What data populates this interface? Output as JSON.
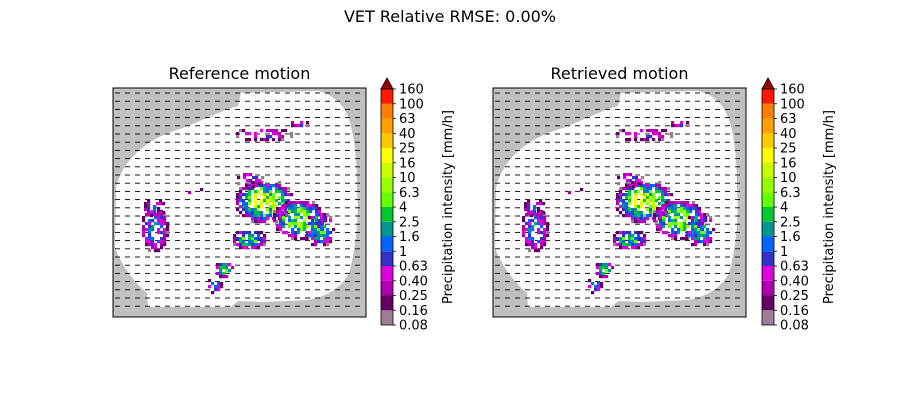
{
  "figure": {
    "suptitle": "VET Relative RMSE: 0.00%"
  },
  "colorbar": {
    "label": "Precipitation intensity [mm/h]",
    "tick_labels": [
      "0.08",
      "0.16",
      "0.25",
      "0.40",
      "0.63",
      "1",
      "1.6",
      "2.5",
      "4",
      "6.3",
      "10",
      "16",
      "25",
      "40",
      "63",
      "100",
      "160"
    ],
    "colors": [
      "#9c7e94",
      "#640064",
      "#af00af",
      "#dc00dc",
      "#3232c8",
      "#0064ff",
      "#009696",
      "#00c832",
      "#64ff00",
      "#96ff00",
      "#c8ff00",
      "#ffff00",
      "#ffc800",
      "#ffa000",
      "#ff7d00",
      "#ff1900"
    ],
    "extend_color": "#9a0000",
    "extend": "max"
  },
  "colors": {
    "background_nodata": "#c0c0c0",
    "radar_domain": "#ffffff",
    "vector_color": "#000000"
  },
  "chart_data": [
    {
      "type": "heatmap",
      "title": "Reference motion",
      "field": "precipitation intensity with motion vectors",
      "motion_vectors": "uniform rightward (eastward) flow, arrows drawn in rows",
      "axes_visible": false
    },
    {
      "type": "heatmap",
      "title": "Retrieved motion",
      "field": "precipitation intensity with motion vectors",
      "motion_vectors": "uniform rightward (eastward) flow, arrows drawn in rows",
      "axes_visible": false
    }
  ]
}
